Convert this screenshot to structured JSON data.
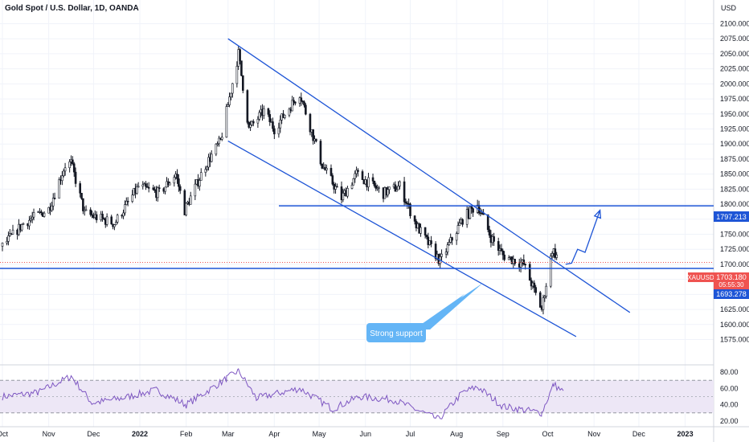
{
  "header": {
    "title": "Gold Spot / U.S. Dollar, 1D, OANDA",
    "currency": "USD"
  },
  "price_axis": {
    "ticks": [
      "2100.000",
      "2075.000",
      "2050.000",
      "2025.000",
      "2000.000",
      "1975.000",
      "1950.000",
      "1925.000",
      "1900.000",
      "1875.000",
      "1850.000",
      "1825.000",
      "1800.000",
      "1775.000",
      "1750.000",
      "1725.000",
      "1700.000",
      "1675.000",
      "1650.000",
      "1625.000",
      "1600.000",
      "1575.000"
    ],
    "tick_values": [
      2100,
      2075,
      2050,
      2025,
      2000,
      1975,
      1950,
      1925,
      1900,
      1875,
      1850,
      1825,
      1800,
      1775,
      1750,
      1725,
      1700,
      1675,
      1650,
      1625,
      1600,
      1575
    ]
  },
  "rsi_axis": {
    "ticks": [
      "80.00",
      "60.00",
      "40.00",
      "20.00"
    ],
    "tick_values": [
      80,
      60,
      40,
      20
    ]
  },
  "time_axis": {
    "labels": [
      "Oct",
      "Nov",
      "Dec",
      "2022",
      "Feb",
      "Mar",
      "Apr",
      "May",
      "Jun",
      "Jul",
      "Aug",
      "Sep",
      "Oct",
      "Nov",
      "Dec",
      "2023"
    ],
    "bold": [
      "2022",
      "2023"
    ]
  },
  "badges": {
    "resistance_value": "1797.213",
    "symbol": "XAUUSD",
    "last_price": "1703.180",
    "countdown": "05:55:30",
    "support_value": "1693.278"
  },
  "annotation": {
    "label": "Strong support"
  },
  "colors": {
    "up": "#26a69a",
    "down": "#ef5350",
    "candle": "#131722",
    "drawing": "#1e55d6",
    "last_price": "#ef5350",
    "rsi_line": "#7e57c2",
    "rsi_band": "#ede7f6",
    "callout": "#64b5f6"
  },
  "chart_data": {
    "type": "candlestick",
    "symbol": "XAUUSD",
    "timeframe": "1D",
    "x_range": [
      "2021-10-01",
      "2023-01-05"
    ],
    "y_range": [
      1565,
      2110
    ],
    "close_path": [
      {
        "date": "2021-10-01",
        "price": 1730
      },
      {
        "date": "2021-10-15",
        "price": 1768
      },
      {
        "date": "2021-11-01",
        "price": 1792
      },
      {
        "date": "2021-11-12",
        "price": 1865
      },
      {
        "date": "2021-11-16",
        "price": 1868
      },
      {
        "date": "2021-11-25",
        "price": 1785
      },
      {
        "date": "2021-12-15",
        "price": 1768
      },
      {
        "date": "2021-12-31",
        "price": 1829
      },
      {
        "date": "2022-01-14",
        "price": 1818
      },
      {
        "date": "2022-01-25",
        "price": 1850
      },
      {
        "date": "2022-01-31",
        "price": 1790
      },
      {
        "date": "2022-02-14",
        "price": 1865
      },
      {
        "date": "2022-02-24",
        "price": 1905
      },
      {
        "date": "2022-03-08",
        "price": 2050
      },
      {
        "date": "2022-03-15",
        "price": 1925
      },
      {
        "date": "2022-03-25",
        "price": 1955
      },
      {
        "date": "2022-04-01",
        "price": 1925
      },
      {
        "date": "2022-04-18",
        "price": 1985
      },
      {
        "date": "2022-05-03",
        "price": 1865
      },
      {
        "date": "2022-05-16",
        "price": 1810
      },
      {
        "date": "2022-05-26",
        "price": 1850
      },
      {
        "date": "2022-06-13",
        "price": 1818
      },
      {
        "date": "2022-06-24",
        "price": 1830
      },
      {
        "date": "2022-07-05",
        "price": 1765
      },
      {
        "date": "2022-07-21",
        "price": 1705
      },
      {
        "date": "2022-08-05",
        "price": 1775
      },
      {
        "date": "2022-08-15",
        "price": 1800
      },
      {
        "date": "2022-08-24",
        "price": 1745
      },
      {
        "date": "2022-09-01",
        "price": 1715
      },
      {
        "date": "2022-09-15",
        "price": 1700
      },
      {
        "date": "2022-09-27",
        "price": 1625
      },
      {
        "date": "2022-10-04",
        "price": 1725
      },
      {
        "date": "2022-10-10",
        "price": 1703
      }
    ],
    "drawings": {
      "channel_upper": [
        {
          "date": "2022-03-01",
          "price": 2075
        },
        {
          "date": "2022-11-25",
          "price": 1620
        }
      ],
      "channel_lower": [
        {
          "date": "2022-03-01",
          "price": 1905
        },
        {
          "date": "2022-10-20",
          "price": 1580
        }
      ],
      "resistance_level": 1797.213,
      "support_level": 1693.278,
      "projection": [
        {
          "date": "2022-10-13",
          "price": 1700
        },
        {
          "date": "2022-10-17",
          "price": 1702
        },
        {
          "date": "2022-10-21",
          "price": 1725
        },
        {
          "date": "2022-10-26",
          "price": 1720
        },
        {
          "date": "2022-11-05",
          "price": 1790
        }
      ]
    },
    "rsi": {
      "range": [
        15,
        85
      ],
      "band": [
        30,
        70
      ],
      "mid": 50,
      "path": [
        {
          "date": "2021-10-01",
          "v": 50
        },
        {
          "date": "2021-10-25",
          "v": 55
        },
        {
          "date": "2021-11-16",
          "v": 75
        },
        {
          "date": "2021-11-30",
          "v": 42
        },
        {
          "date": "2021-12-20",
          "v": 48
        },
        {
          "date": "2022-01-12",
          "v": 58
        },
        {
          "date": "2022-02-01",
          "v": 40
        },
        {
          "date": "2022-02-28",
          "v": 72
        },
        {
          "date": "2022-03-08",
          "v": 82
        },
        {
          "date": "2022-03-20",
          "v": 48
        },
        {
          "date": "2022-04-18",
          "v": 60
        },
        {
          "date": "2022-05-10",
          "v": 35
        },
        {
          "date": "2022-05-28",
          "v": 50
        },
        {
          "date": "2022-06-20",
          "v": 46
        },
        {
          "date": "2022-07-20",
          "v": 22
        },
        {
          "date": "2022-08-05",
          "v": 55
        },
        {
          "date": "2022-08-15",
          "v": 62
        },
        {
          "date": "2022-09-01",
          "v": 38
        },
        {
          "date": "2022-09-27",
          "v": 30
        },
        {
          "date": "2022-10-05",
          "v": 65
        },
        {
          "date": "2022-10-12",
          "v": 55
        }
      ]
    }
  }
}
